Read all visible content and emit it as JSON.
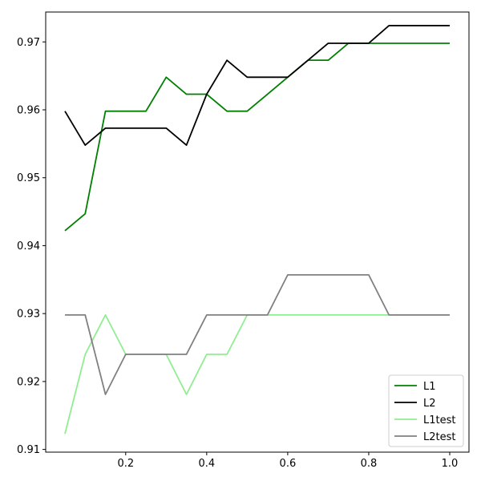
{
  "chart_data": {
    "type": "line",
    "title": "",
    "xlabel": "",
    "ylabel": "",
    "xlim": [
      0.0025,
      1.0475
    ],
    "ylim": [
      0.9096,
      0.9744
    ],
    "grid": false,
    "legend_position": "bottom-right",
    "x": [
      0.05,
      0.1,
      0.15,
      0.2,
      0.25,
      0.3,
      0.35,
      0.4,
      0.45,
      0.5,
      0.55,
      0.6,
      0.65,
      0.7,
      0.75,
      0.8,
      0.85,
      0.9,
      0.95,
      1.0
    ],
    "series": [
      {
        "name": "L1",
        "color": "#008000",
        "values": [
          0.9422,
          0.9447,
          0.9598,
          0.9598,
          0.9598,
          0.9648,
          0.9623,
          0.9623,
          0.9598,
          0.9598,
          0.9623,
          0.9648,
          0.9673,
          0.9673,
          0.9698,
          0.9698,
          0.9698,
          0.9698,
          0.9698,
          0.9698
        ]
      },
      {
        "name": "L2",
        "color": "#000000",
        "values": [
          0.9598,
          0.9548,
          0.9573,
          0.9573,
          0.9573,
          0.9573,
          0.9548,
          0.9623,
          0.9673,
          0.9648,
          0.9648,
          0.9648,
          0.9673,
          0.9698,
          0.9698,
          0.9698,
          0.9724,
          0.9724,
          0.9724,
          0.9724
        ]
      },
      {
        "name": "L1test",
        "color": "#90ee90",
        "values": [
          0.9123,
          0.924,
          0.9298,
          0.924,
          0.924,
          0.924,
          0.9181,
          0.924,
          0.924,
          0.9298,
          0.9298,
          0.9298,
          0.9298,
          0.9298,
          0.9298,
          0.9298,
          0.9298,
          0.9298,
          0.9298,
          0.9298
        ]
      },
      {
        "name": "L2test",
        "color": "#808080",
        "values": [
          0.9298,
          0.9298,
          0.9181,
          0.924,
          0.924,
          0.924,
          0.924,
          0.9298,
          0.9298,
          0.9298,
          0.9298,
          0.9357,
          0.9357,
          0.9357,
          0.9357,
          0.9357,
          0.9298,
          0.9298,
          0.9298,
          0.9298
        ]
      }
    ],
    "x_ticks": [
      {
        "value": 0.2,
        "label": "0.2"
      },
      {
        "value": 0.4,
        "label": "0.4"
      },
      {
        "value": 0.6,
        "label": "0.6"
      },
      {
        "value": 0.8,
        "label": "0.8"
      },
      {
        "value": 1.0,
        "label": "1.0"
      }
    ],
    "y_ticks": [
      {
        "value": 0.91,
        "label": "0.91"
      },
      {
        "value": 0.92,
        "label": "0.92"
      },
      {
        "value": 0.93,
        "label": "0.93"
      },
      {
        "value": 0.94,
        "label": "0.94"
      },
      {
        "value": 0.95,
        "label": "0.95"
      },
      {
        "value": 0.96,
        "label": "0.96"
      },
      {
        "value": 0.97,
        "label": "0.97"
      }
    ]
  }
}
